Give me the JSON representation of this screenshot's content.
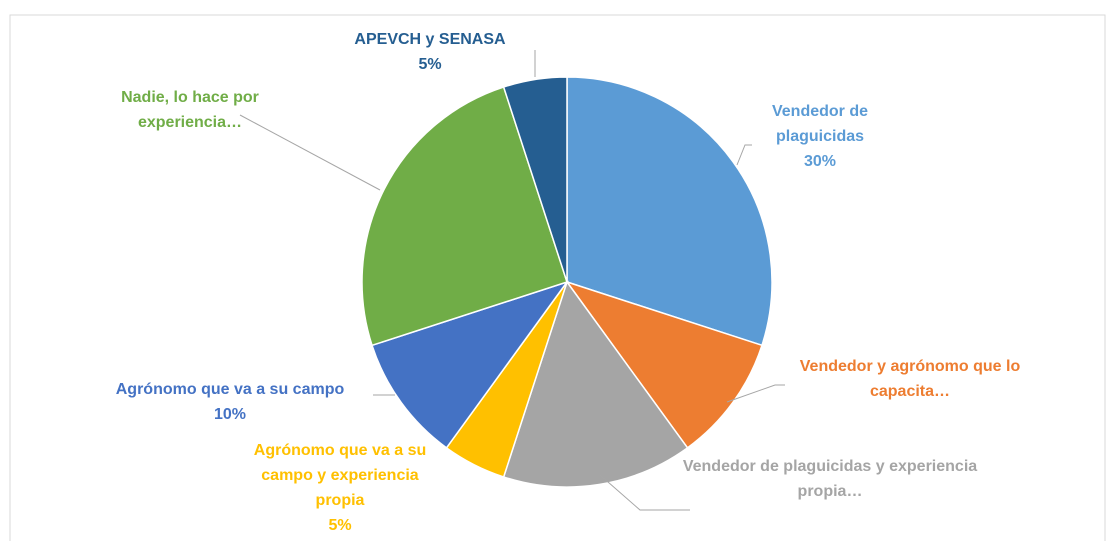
{
  "chart_data": {
    "type": "pie",
    "categories": [
      "Vendedor de plaguicidas",
      "Vendedor y agrónomo que lo capacita…",
      "Vendedor de plaguicidas y experiencia propia…",
      "Agrónomo que va a su campo y experiencia propia",
      "Agrónomo que va a su campo",
      "Nadie, lo hace por experiencia…",
      "APEVCH y SENASA"
    ],
    "values": [
      30,
      10,
      15,
      5,
      10,
      25,
      5
    ],
    "value_labels": [
      "30%",
      null,
      null,
      "5%",
      "10%",
      null,
      "5%"
    ],
    "colors": [
      "#5b9bd5",
      "#ed7d31",
      "#a5a5a5",
      "#ffc000",
      "#4472c4",
      "#70ad47",
      "#255e91"
    ]
  }
}
